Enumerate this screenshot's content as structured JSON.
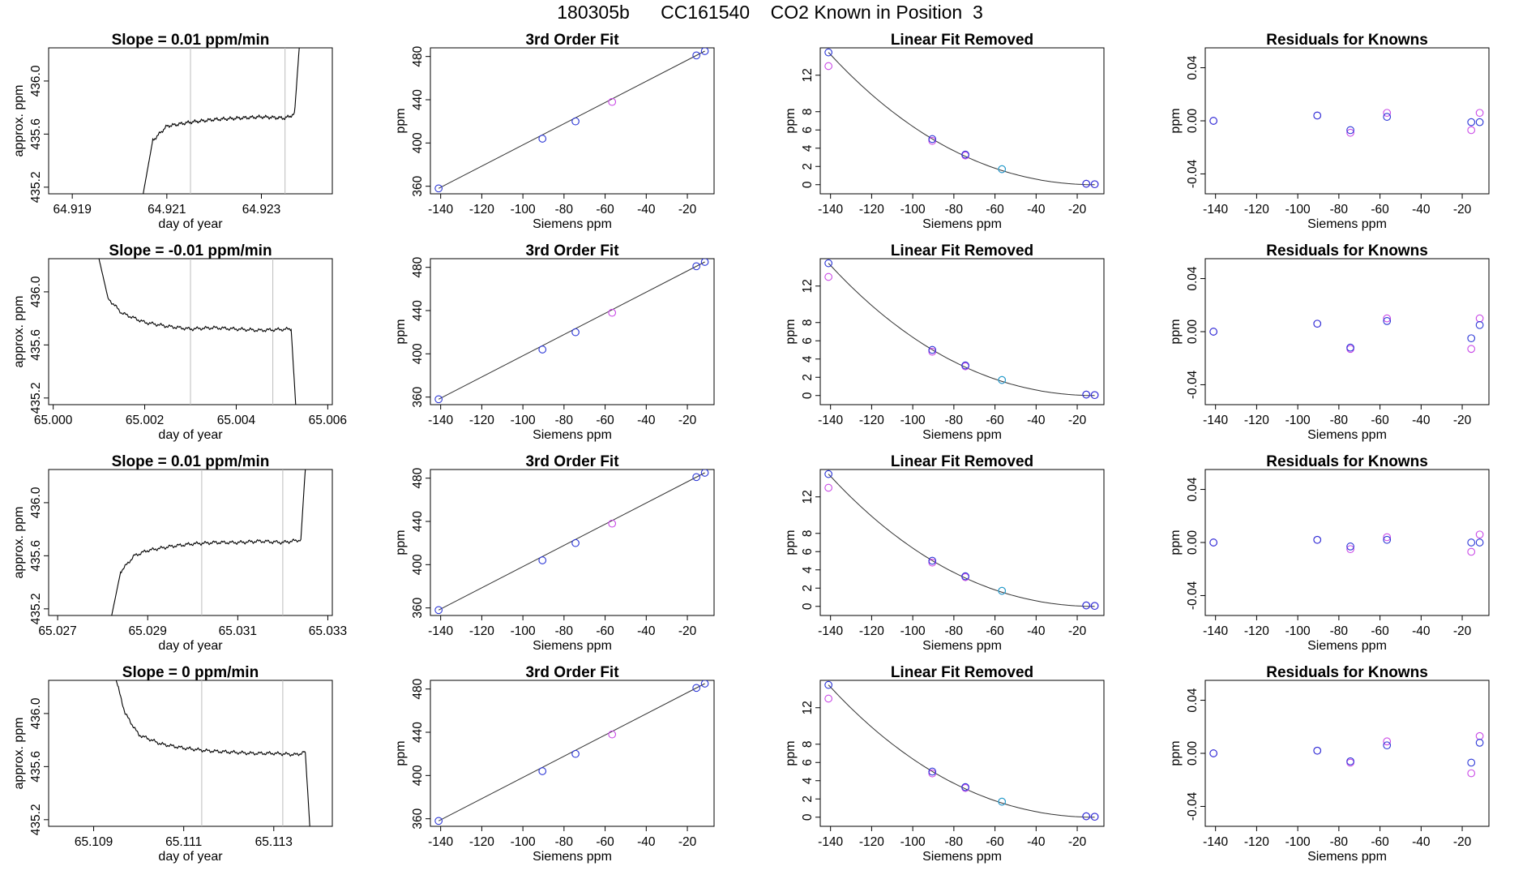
{
  "title": "180305b      CC161540    CO2 Known in Position  3",
  "colors": {
    "blue": "#2a35d6",
    "magenta": "#c948e6",
    "cyan": "#1aa8c8",
    "red": "#d8566a",
    "line": "#000000",
    "vline": "#bdbdbd"
  },
  "chart_data": [
    {
      "row": 1,
      "panels": [
        {
          "type": "line",
          "title": "Slope =  0.01  ppm/min",
          "xlabel": "day of year",
          "ylabel": "approx. ppm",
          "xlim": [
            64.9185,
            64.9245
          ],
          "ylim": [
            435.15,
            436.25
          ],
          "x_ticks": [
            "64.919",
            "64.921",
            "64.923"
          ],
          "y_ticks": [
            "435.2",
            "435.6",
            "436.0"
          ],
          "vlines": [
            64.9215,
            64.9235
          ],
          "trace": {
            "x": [
              64.9205,
              64.9207,
              64.921,
              64.9215,
              64.922,
              64.9225,
              64.923,
              64.9235,
              64.9237,
              64.9238
            ],
            "y": [
              435.15,
              435.55,
              435.66,
              435.69,
              435.71,
              435.72,
              435.73,
              435.72,
              435.75,
              436.25
            ]
          }
        },
        {
          "type": "scatter+fit",
          "title": "3rd Order Fit",
          "xlabel": "Siemens ppm",
          "ylabel": "ppm",
          "xlim": [
            -145,
            -7
          ],
          "ylim": [
            353,
            488
          ],
          "x_ticks": [
            "-140",
            "-120",
            "-100",
            "-80",
            "-60",
            "-40",
            "-20"
          ],
          "y_ticks": [
            "360",
            "400",
            "440",
            "480"
          ],
          "x": [
            -141,
            -90.5,
            -74.4,
            -56.6,
            -15.6,
            -11.5
          ],
          "y": [
            358,
            404,
            420,
            438,
            481,
            485
          ]
        },
        {
          "type": "scatter+curve",
          "title": "Linear Fit Removed",
          "xlabel": "Siemens ppm",
          "ylabel": "ppm",
          "xlim": [
            -145,
            -7
          ],
          "ylim": [
            -1,
            15
          ],
          "x_ticks": [
            "-140",
            "-120",
            "-100",
            "-80",
            "-60",
            "-40",
            "-20"
          ],
          "y_ticks": [
            "0",
            "2",
            "4",
            "6",
            "8",
            "12"
          ],
          "x": [
            -141,
            -90.5,
            -74.4,
            -56.6,
            -15.6,
            -11.5
          ],
          "y_blue": [
            14.5,
            5.0,
            3.3,
            1.7,
            0.1,
            0.05
          ],
          "y_magenta": [
            13.0,
            4.8,
            3.2,
            1.7,
            0.1,
            0.05
          ]
        },
        {
          "type": "scatter",
          "title": "Residuals for Knowns",
          "xlabel": "Siemens ppm",
          "ylabel": "ppm",
          "xlim": [
            -145,
            -7
          ],
          "ylim": [
            -0.055,
            0.055
          ],
          "x_ticks": [
            "-140",
            "-120",
            "-100",
            "-80",
            "-60",
            "-40",
            "-20"
          ],
          "y_ticks": [
            "-0.04",
            "0.00",
            "0.04"
          ],
          "x": [
            -141,
            -90.5,
            -74.4,
            -56.6,
            -15.6,
            -11.5
          ],
          "y_blue": [
            0.0,
            0.004,
            -0.007,
            0.003,
            -0.001,
            -0.001
          ],
          "y_magenta": [
            0.0,
            0.004,
            -0.009,
            0.006,
            -0.007,
            0.006
          ]
        }
      ]
    },
    {
      "row": 2,
      "panels": [
        {
          "type": "line",
          "title": "Slope =  -0.01  ppm/min",
          "xlabel": "day of year",
          "ylabel": "approx. ppm",
          "xlim": [
            64.9999,
            65.0061
          ],
          "ylim": [
            435.15,
            436.25
          ],
          "x_ticks": [
            "65.000",
            "65.002",
            "65.004",
            "65.006"
          ],
          "y_ticks": [
            "435.2",
            "435.6",
            "436.0"
          ],
          "vlines": [
            65.003,
            65.0048
          ],
          "trace": {
            "x": [
              65.001,
              65.0012,
              65.0015,
              65.002,
              65.0025,
              65.003,
              65.0035,
              65.004,
              65.0045,
              65.0052,
              65.0053
            ],
            "y": [
              436.25,
              435.95,
              435.84,
              435.77,
              435.74,
              435.72,
              435.73,
              435.72,
              435.71,
              435.72,
              435.15
            ]
          }
        },
        {
          "type": "scatter+fit",
          "title": "3rd Order Fit",
          "xlabel": "Siemens ppm",
          "ylabel": "ppm",
          "xlim": [
            -145,
            -7
          ],
          "ylim": [
            353,
            488
          ],
          "x_ticks": [
            "-140",
            "-120",
            "-100",
            "-80",
            "-60",
            "-40",
            "-20"
          ],
          "y_ticks": [
            "360",
            "400",
            "440",
            "480"
          ],
          "x": [
            -141,
            -90.5,
            -74.4,
            -56.6,
            -15.6,
            -11.5
          ],
          "y": [
            358,
            404,
            420,
            438,
            481,
            485
          ]
        },
        {
          "type": "scatter+curve",
          "title": "Linear Fit Removed",
          "xlabel": "Siemens ppm",
          "ylabel": "ppm",
          "xlim": [
            -145,
            -7
          ],
          "ylim": [
            -1,
            15
          ],
          "x_ticks": [
            "-140",
            "-120",
            "-100",
            "-80",
            "-60",
            "-40",
            "-20"
          ],
          "y_ticks": [
            "0",
            "2",
            "4",
            "6",
            "8",
            "12"
          ],
          "x": [
            -141,
            -90.5,
            -74.4,
            -56.6,
            -15.6,
            -11.5
          ],
          "y_blue": [
            14.5,
            5.0,
            3.3,
            1.7,
            0.1,
            0.05
          ],
          "y_magenta": [
            13.0,
            4.8,
            3.2,
            1.7,
            0.1,
            0.05
          ]
        },
        {
          "type": "scatter",
          "title": "Residuals for Knowns",
          "xlabel": "Siemens ppm",
          "ylabel": "ppm",
          "xlim": [
            -145,
            -7
          ],
          "ylim": [
            -0.055,
            0.055
          ],
          "x_ticks": [
            "-140",
            "-120",
            "-100",
            "-80",
            "-60",
            "-40",
            "-20"
          ],
          "y_ticks": [
            "-0.04",
            "0.00",
            "0.04"
          ],
          "x": [
            -141,
            -90.5,
            -74.4,
            -56.6,
            -15.6,
            -11.5
          ],
          "y_blue": [
            0.0,
            0.006,
            -0.012,
            0.008,
            -0.005,
            0.005
          ],
          "y_magenta": [
            0.0,
            0.006,
            -0.013,
            0.01,
            -0.013,
            0.01
          ]
        }
      ]
    },
    {
      "row": 3,
      "panels": [
        {
          "type": "line",
          "title": "Slope =  0.01  ppm/min",
          "xlabel": "day of year",
          "ylabel": "approx. ppm",
          "xlim": [
            65.0268,
            65.0331
          ],
          "ylim": [
            435.15,
            436.25
          ],
          "x_ticks": [
            "65.027",
            "65.029",
            "65.031",
            "65.033"
          ],
          "y_ticks": [
            "435.2",
            "435.6",
            "436.0"
          ],
          "vlines": [
            65.0302,
            65.032
          ],
          "trace": {
            "x": [
              65.0282,
              65.0284,
              65.0287,
              65.029,
              65.0295,
              65.03,
              65.0305,
              65.031,
              65.0315,
              65.032,
              65.0324,
              65.0325
            ],
            "y": [
              435.15,
              435.48,
              435.6,
              435.64,
              435.67,
              435.69,
              435.7,
              435.7,
              435.71,
              435.7,
              435.72,
              436.25
            ]
          }
        },
        {
          "type": "scatter+fit",
          "title": "3rd Order Fit",
          "xlabel": "Siemens ppm",
          "ylabel": "ppm",
          "xlim": [
            -145,
            -7
          ],
          "ylim": [
            353,
            488
          ],
          "x_ticks": [
            "-140",
            "-120",
            "-100",
            "-80",
            "-60",
            "-40",
            "-20"
          ],
          "y_ticks": [
            "360",
            "400",
            "440",
            "480"
          ],
          "x": [
            -141,
            -90.5,
            -74.4,
            -56.6,
            -15.6,
            -11.5
          ],
          "y": [
            358,
            404,
            420,
            438,
            481,
            485
          ]
        },
        {
          "type": "scatter+curve",
          "title": "Linear Fit Removed",
          "xlabel": "Siemens ppm",
          "ylabel": "ppm",
          "xlim": [
            -145,
            -7
          ],
          "ylim": [
            -1,
            15
          ],
          "x_ticks": [
            "-140",
            "-120",
            "-100",
            "-80",
            "-60",
            "-40",
            "-20"
          ],
          "y_ticks": [
            "0",
            "2",
            "4",
            "6",
            "8",
            "12"
          ],
          "x": [
            -141,
            -90.5,
            -74.4,
            -56.6,
            -15.6,
            -11.5
          ],
          "y_blue": [
            14.5,
            5.0,
            3.3,
            1.7,
            0.1,
            0.05
          ],
          "y_magenta": [
            13.0,
            4.8,
            3.2,
            1.7,
            0.1,
            0.05
          ]
        },
        {
          "type": "scatter",
          "title": "Residuals for Knowns",
          "xlabel": "Siemens ppm",
          "ylabel": "ppm",
          "xlim": [
            -145,
            -7
          ],
          "ylim": [
            -0.055,
            0.055
          ],
          "x_ticks": [
            "-140",
            "-120",
            "-100",
            "-80",
            "-60",
            "-40",
            "-20"
          ],
          "y_ticks": [
            "-0.04",
            "0.00",
            "0.04"
          ],
          "x": [
            -141,
            -90.5,
            -74.4,
            -56.6,
            -15.6,
            -11.5
          ],
          "y_blue": [
            0.0,
            0.002,
            -0.003,
            0.002,
            0.0,
            0.0
          ],
          "y_magenta": [
            0.0,
            0.002,
            -0.005,
            0.004,
            -0.007,
            0.006
          ]
        }
      ]
    },
    {
      "row": 4,
      "panels": [
        {
          "type": "line",
          "title": "Slope =  0  ppm/min",
          "xlabel": "day of year",
          "ylabel": "approx. ppm",
          "xlim": [
            65.108,
            65.1143
          ],
          "ylim": [
            435.15,
            436.25
          ],
          "x_ticks": [
            "65.109",
            "65.111",
            "65.113"
          ],
          "y_ticks": [
            "435.2",
            "435.6",
            "436.0"
          ],
          "vlines": [
            65.1114,
            65.1132
          ],
          "trace": {
            "x": [
              65.1095,
              65.1097,
              65.11,
              65.1105,
              65.111,
              65.1115,
              65.112,
              65.1125,
              65.113,
              65.1135,
              65.1137,
              65.1138
            ],
            "y": [
              436.25,
              436.0,
              435.84,
              435.77,
              435.74,
              435.72,
              435.71,
              435.7,
              435.7,
              435.69,
              435.71,
              435.15
            ]
          }
        },
        {
          "type": "scatter+fit",
          "title": "3rd Order Fit",
          "xlabel": "Siemens ppm",
          "ylabel": "ppm",
          "xlim": [
            -145,
            -7
          ],
          "ylim": [
            353,
            488
          ],
          "x_ticks": [
            "-140",
            "-120",
            "-100",
            "-80",
            "-60",
            "-40",
            "-20"
          ],
          "y_ticks": [
            "360",
            "400",
            "440",
            "480"
          ],
          "x": [
            -141,
            -90.5,
            -74.4,
            -56.6,
            -15.6,
            -11.5
          ],
          "y": [
            358,
            404,
            420,
            438,
            481,
            485
          ]
        },
        {
          "type": "scatter+curve",
          "title": "Linear Fit Removed",
          "xlabel": "Siemens ppm",
          "ylabel": "ppm",
          "xlim": [
            -145,
            -7
          ],
          "ylim": [
            -1,
            15
          ],
          "x_ticks": [
            "-140",
            "-120",
            "-100",
            "-80",
            "-60",
            "-40",
            "-20"
          ],
          "y_ticks": [
            "0",
            "2",
            "4",
            "6",
            "8",
            "12"
          ],
          "x": [
            -141,
            -90.5,
            -74.4,
            -56.6,
            -15.6,
            -11.5
          ],
          "y_blue": [
            14.5,
            5.0,
            3.3,
            1.7,
            0.1,
            0.05
          ],
          "y_magenta": [
            13.0,
            4.8,
            3.2,
            1.7,
            0.1,
            0.05
          ]
        },
        {
          "type": "scatter",
          "title": "Residuals for Knowns",
          "xlabel": "Siemens ppm",
          "ylabel": "ppm",
          "xlim": [
            -145,
            -7
          ],
          "ylim": [
            -0.055,
            0.055
          ],
          "x_ticks": [
            "-140",
            "-120",
            "-100",
            "-80",
            "-60",
            "-40",
            "-20"
          ],
          "y_ticks": [
            "-0.04",
            "0.00",
            "0.04"
          ],
          "x": [
            -141,
            -90.5,
            -74.4,
            -56.6,
            -15.6,
            -11.5
          ],
          "y_blue": [
            0.0,
            0.002,
            -0.006,
            0.006,
            -0.007,
            0.008
          ],
          "y_magenta": [
            0.0,
            0.002,
            -0.007,
            0.009,
            -0.015,
            0.013
          ]
        }
      ]
    }
  ]
}
